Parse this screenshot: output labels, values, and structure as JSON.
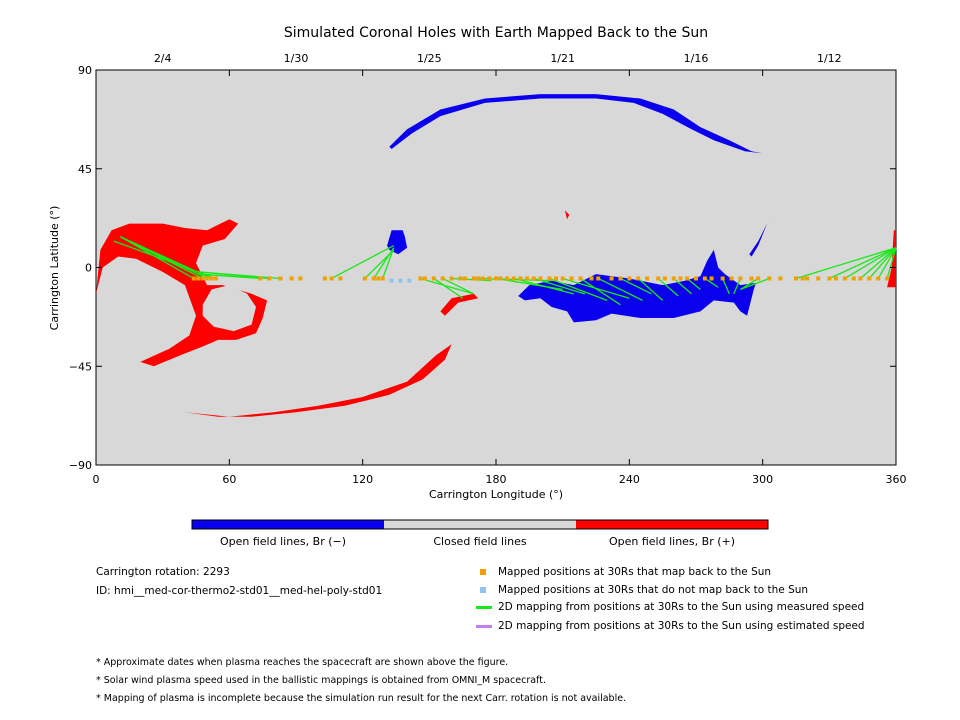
{
  "chart_data": {
    "type": "scatter",
    "title": "Simulated Coronal Holes with Earth Mapped Back to the Sun",
    "xlabel": "Carrington Longitude (°)",
    "ylabel": "Carrington Latitude (°)",
    "xlim": [
      0,
      360
    ],
    "ylim": [
      -90,
      90
    ],
    "x_ticks": [
      "0",
      "60",
      "120",
      "180",
      "240",
      "300",
      "360"
    ],
    "y_ticks": [
      "90",
      "45",
      "0",
      "-45",
      "-90"
    ],
    "top_date_ticks": [
      {
        "label": "2/4",
        "lon": 30
      },
      {
        "label": "1/30",
        "lon": 90
      },
      {
        "label": "1/25",
        "lon": 150
      },
      {
        "label": "1/21",
        "lon": 210
      },
      {
        "label": "1/16",
        "lon": 270
      },
      {
        "label": "1/12",
        "lon": 330
      }
    ],
    "colors": {
      "background": "#d8d8d8",
      "negative_open": "#0a00ee",
      "positive_open": "#ff0000",
      "closed": "#d8d8d8",
      "mapped_point": "#f0a000",
      "unmapped_point": "#8fc4f0",
      "measured_line": "#18e818",
      "estimated_line": "#c080f0"
    },
    "coronal_holes": {
      "negative": [
        {
          "name": "north-polar-arc",
          "outer": [
            [
              132,
              55
            ],
            [
              140,
              63
            ],
            [
              155,
              72
            ],
            [
              175,
              77
            ],
            [
              200,
              79
            ],
            [
              225,
              79
            ],
            [
              245,
              77
            ],
            [
              260,
              72
            ],
            [
              272,
              64
            ],
            [
              285,
              58
            ],
            [
              295,
              53
            ],
            [
              300,
              52
            ],
            [
              292,
              53
            ],
            [
              278,
              58
            ],
            [
              268,
              63
            ],
            [
              255,
              70
            ],
            [
              242,
              75
            ],
            [
              225,
              77
            ],
            [
              200,
              77
            ],
            [
              175,
              75
            ],
            [
              155,
              69
            ],
            [
              142,
              61
            ],
            [
              133,
              54
            ]
          ]
        },
        {
          "name": "equatorial-large",
          "outer": [
            [
              190,
              -13
            ],
            [
              195,
              -8
            ],
            [
              205,
              -6
            ],
            [
              215,
              -8
            ],
            [
              225,
              -3
            ],
            [
              240,
              -5
            ],
            [
              255,
              -8
            ],
            [
              265,
              -6
            ],
            [
              272,
              -4
            ],
            [
              275,
              3
            ],
            [
              278,
              8
            ],
            [
              280,
              0
            ],
            [
              283,
              -3
            ],
            [
              290,
              -8
            ],
            [
              297,
              -7
            ],
            [
              296,
              -10
            ],
            [
              293,
              -22
            ],
            [
              290,
              -20
            ],
            [
              287,
              -16
            ],
            [
              278,
              -15
            ],
            [
              272,
              -20
            ],
            [
              260,
              -23
            ],
            [
              245,
              -23
            ],
            [
              232,
              -21
            ],
            [
              225,
              -24
            ],
            [
              215,
              -25
            ],
            [
              212,
              -20
            ],
            [
              205,
              -18
            ],
            [
              200,
              -14
            ],
            [
              193,
              -15
            ]
          ]
        },
        {
          "name": "small-hole-130",
          "outer": [
            [
              131,
              10
            ],
            [
              133,
              17
            ],
            [
              138,
              17
            ],
            [
              139,
              14
            ],
            [
              140,
              9
            ],
            [
              136,
              6
            ],
            [
              132,
              8
            ]
          ]
        },
        {
          "name": "arc-300",
          "outer": [
            [
              294,
              6
            ],
            [
              298,
              12
            ],
            [
              303,
              22
            ],
            [
              305,
              26
            ],
            [
              302,
              20
            ],
            [
              298,
              10
            ],
            [
              295,
              5
            ]
          ]
        }
      ],
      "positive": [
        {
          "name": "large-west-region",
          "outer": [
            [
              0,
              -12
            ],
            [
              2,
              8
            ],
            [
              7,
              17
            ],
            [
              15,
              20
            ],
            [
              30,
              20
            ],
            [
              40,
              18
            ],
            [
              50,
              17
            ],
            [
              60,
              22
            ],
            [
              64,
              20
            ],
            [
              58,
              13
            ],
            [
              48,
              10
            ],
            [
              45,
              2
            ],
            [
              50,
              -8
            ],
            [
              57,
              -8
            ],
            [
              70,
              -12
            ],
            [
              77,
              -15
            ],
            [
              75,
              -23
            ],
            [
              72,
              -30
            ],
            [
              63,
              -33
            ],
            [
              55,
              -33
            ],
            [
              48,
              -36
            ],
            [
              38,
              -40
            ],
            [
              26,
              -45
            ],
            [
              20,
              -43
            ],
            [
              33,
              -37
            ],
            [
              42,
              -31
            ],
            [
              45,
              -22
            ],
            [
              40,
              -8
            ],
            [
              30,
              -2
            ],
            [
              18,
              4
            ],
            [
              10,
              5
            ],
            [
              3,
              0
            ]
          ]
        },
        {
          "name": "south-arc",
          "outer": [
            [
              40,
              -66
            ],
            [
              60,
              -68
            ],
            [
              80,
              -66
            ],
            [
              100,
              -63
            ],
            [
              120,
              -59
            ],
            [
              140,
              -52
            ],
            [
              153,
              -40
            ],
            [
              160,
              -35
            ],
            [
              157,
              -42
            ],
            [
              147,
              -51
            ],
            [
              132,
              -58
            ],
            [
              112,
              -63
            ],
            [
              90,
              -66
            ],
            [
              70,
              -68
            ],
            [
              55,
              -68
            ]
          ]
        },
        {
          "name": "small-arc-160",
          "outer": [
            [
              155,
              -20
            ],
            [
              160,
              -14
            ],
            [
              170,
              -12
            ],
            [
              172,
              -14
            ],
            [
              163,
              -16
            ],
            [
              157,
              -22
            ]
          ]
        },
        {
          "name": "tiny-210",
          "outer": [
            [
              211,
              26
            ],
            [
              212,
              22
            ],
            [
              213,
              24
            ]
          ]
        },
        {
          "name": "east-edge",
          "outer": [
            [
              356,
              -9
            ],
            [
              358,
              0
            ],
            [
              359,
              17
            ],
            [
              360,
              17
            ],
            [
              360,
              -9
            ]
          ]
        }
      ]
    },
    "closed_holes_in_positive": [
      {
        "name": "ring-interior",
        "outer": [
          [
            48,
            -17
          ],
          [
            52,
            -10
          ],
          [
            60,
            -8
          ],
          [
            68,
            -12
          ],
          [
            72,
            -18
          ],
          [
            70,
            -26
          ],
          [
            62,
            -29
          ],
          [
            53,
            -27
          ],
          [
            48,
            -22
          ]
        ]
      }
    ],
    "mapped_points_lat": -5,
    "mapped_points_lon": [
      44,
      46,
      48,
      50,
      52,
      54,
      74,
      78,
      83,
      88,
      92,
      103,
      106,
      110,
      121,
      125,
      127,
      129,
      146,
      148,
      152,
      156,
      160,
      164,
      166,
      170,
      172,
      174,
      177,
      180,
      182,
      185,
      188,
      191,
      194,
      197,
      200,
      204,
      207,
      210,
      214,
      218,
      223,
      226,
      232,
      236,
      240,
      244,
      248,
      253,
      256,
      260,
      263,
      266,
      270,
      274,
      277,
      282,
      286,
      290,
      295,
      298,
      303,
      308,
      315,
      318,
      320,
      325,
      330,
      333,
      337,
      341,
      344,
      348,
      352,
      356
    ],
    "unmapped_points": [
      [
        133,
        -6
      ],
      [
        137,
        -6
      ],
      [
        141,
        -6
      ]
    ],
    "mapping_lines_measured": [
      {
        "from": [
          44,
          -5
        ],
        "to": [
          11,
          14
        ]
      },
      {
        "from": [
          48,
          -5
        ],
        "to": [
          11,
          14
        ]
      },
      {
        "from": [
          50,
          -5
        ],
        "to": [
          11,
          14
        ]
      },
      {
        "from": [
          52,
          -5
        ],
        "to": [
          11,
          14
        ]
      },
      {
        "from": [
          54,
          -5
        ],
        "to": [
          8,
          12
        ]
      },
      {
        "from": [
          74,
          -5
        ],
        "to": [
          46,
          -3
        ]
      },
      {
        "from": [
          78,
          -5
        ],
        "to": [
          46,
          -2
        ]
      },
      {
        "from": [
          83,
          -5
        ],
        "to": [
          46,
          -2
        ]
      },
      {
        "from": [
          106,
          -5
        ],
        "to": [
          134,
          10
        ]
      },
      {
        "from": [
          121,
          -5
        ],
        "to": [
          134,
          8
        ]
      },
      {
        "from": [
          125,
          -5
        ],
        "to": [
          134,
          9
        ]
      },
      {
        "from": [
          129,
          -5
        ],
        "to": [
          134,
          9
        ]
      },
      {
        "from": [
          146,
          -5
        ],
        "to": [
          170,
          -12
        ]
      },
      {
        "from": [
          152,
          -5
        ],
        "to": [
          165,
          -14
        ]
      },
      {
        "from": [
          156,
          -5
        ],
        "to": [
          170,
          -12
        ]
      },
      {
        "from": [
          160,
          -5
        ],
        "to": [
          178,
          -6
        ]
      },
      {
        "from": [
          172,
          -5
        ],
        "to": [
          205,
          -6
        ]
      },
      {
        "from": [
          180,
          -5
        ],
        "to": [
          210,
          -10
        ]
      },
      {
        "from": [
          188,
          -5
        ],
        "to": [
          215,
          -12
        ]
      },
      {
        "from": [
          197,
          -5
        ],
        "to": [
          220,
          -12
        ]
      },
      {
        "from": [
          204,
          -5
        ],
        "to": [
          230,
          -15
        ]
      },
      {
        "from": [
          210,
          -5
        ],
        "to": [
          240,
          -14
        ]
      },
      {
        "from": [
          218,
          -5
        ],
        "to": [
          236,
          -17
        ]
      },
      {
        "from": [
          226,
          -5
        ],
        "to": [
          246,
          -15
        ]
      },
      {
        "from": [
          236,
          -5
        ],
        "to": [
          250,
          -12
        ]
      },
      {
        "from": [
          244,
          -5
        ],
        "to": [
          255,
          -15
        ]
      },
      {
        "from": [
          253,
          -5
        ],
        "to": [
          262,
          -13
        ]
      },
      {
        "from": [
          260,
          -5
        ],
        "to": [
          268,
          -12
        ]
      },
      {
        "from": [
          266,
          -5
        ],
        "to": [
          272,
          -10
        ]
      },
      {
        "from": [
          274,
          -5
        ],
        "to": [
          280,
          -9
        ]
      },
      {
        "from": [
          282,
          -5
        ],
        "to": [
          285,
          -12
        ]
      },
      {
        "from": [
          290,
          -5
        ],
        "to": [
          287,
          -12
        ]
      },
      {
        "from": [
          298,
          -5
        ],
        "to": [
          290,
          -10
        ]
      },
      {
        "from": [
          303,
          -5
        ],
        "to": [
          290,
          -10
        ]
      },
      {
        "from": [
          315,
          -5
        ],
        "to": [
          360,
          9
        ]
      },
      {
        "from": [
          330,
          -5
        ],
        "to": [
          360,
          9
        ]
      },
      {
        "from": [
          337,
          -5
        ],
        "to": [
          360,
          9
        ]
      },
      {
        "from": [
          344,
          -5
        ],
        "to": [
          360,
          9
        ]
      },
      {
        "from": [
          348,
          -5
        ],
        "to": [
          360,
          9
        ]
      },
      {
        "from": [
          352,
          -5
        ],
        "to": [
          360,
          9
        ]
      },
      {
        "from": [
          356,
          -5
        ],
        "to": [
          360,
          9
        ]
      }
    ],
    "colorbar": {
      "labels": [
        "Open field lines, Br (−)",
        "Closed field lines",
        "Open field lines, Br (+)"
      ]
    }
  },
  "info": {
    "rotation": "Carrington rotation: 2293",
    "id": "ID: hmi__med-cor-thermo2-std01__med-hel-poly-std01"
  },
  "legend": [
    {
      "label": "Mapped positions at 30Rs that map back to the Sun",
      "kind": "square",
      "color": "#f0a000"
    },
    {
      "label": "Mapped positions at 30Rs that do not map back to the Sun",
      "kind": "square",
      "color": "#8fc4f0"
    },
    {
      "label": "2D mapping from positions at 30Rs to the Sun using measured speed",
      "kind": "line",
      "color": "#18e818"
    },
    {
      "label": "2D mapping from positions at 30Rs to the Sun using estimated speed",
      "kind": "line",
      "color": "#c080f0"
    }
  ],
  "notes": [
    "* Approximate dates when plasma reaches the spacecraft are shown above the figure.",
    "* Solar wind plasma speed used in the ballistic mappings is obtained from OMNI_M spacecraft.",
    "* Mapping of plasma is incomplete because the simulation run result for the next Carr. rotation is not available."
  ]
}
